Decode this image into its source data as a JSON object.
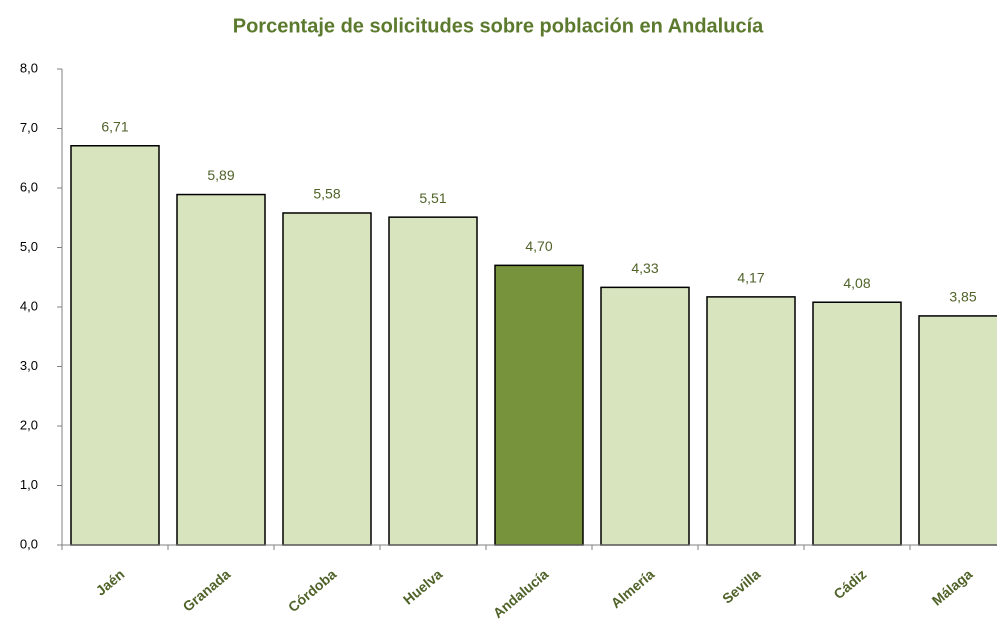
{
  "chart_data": {
    "type": "bar",
    "title": "Porcentaje de solicitudes sobre población en Andalucía",
    "categories": [
      "Jaén",
      "Granada",
      "Córdoba",
      "Huelva",
      "Andalucía",
      "Almería",
      "Sevilla",
      "Cádiz",
      "Málaga"
    ],
    "values": [
      6.71,
      5.89,
      5.58,
      5.51,
      4.7,
      4.33,
      4.17,
      4.08,
      3.85
    ],
    "value_labels": [
      "6,71",
      "5,89",
      "5,58",
      "5,51",
      "4,70",
      "4,33",
      "4,17",
      "4,08",
      "3,85"
    ],
    "colors": [
      "#d7e4bd",
      "#d7e4bd",
      "#d7e4bd",
      "#d7e4bd",
      "#77933c",
      "#d7e4bd",
      "#d7e4bd",
      "#d7e4bd",
      "#d7e4bd"
    ],
    "ylim": [
      0,
      8
    ],
    "yticks": [
      {
        "value": 0,
        "label": "0,0"
      },
      {
        "value": 1,
        "label": "1,0"
      },
      {
        "value": 2,
        "label": "2,0"
      },
      {
        "value": 3,
        "label": "3,0"
      },
      {
        "value": 4,
        "label": "4,0"
      },
      {
        "value": 5,
        "label": "5,0"
      },
      {
        "value": 6,
        "label": "6,0"
      },
      {
        "value": 7,
        "label": "7,0"
      },
      {
        "value": 8,
        "label": "8,0"
      }
    ],
    "grid": false
  }
}
